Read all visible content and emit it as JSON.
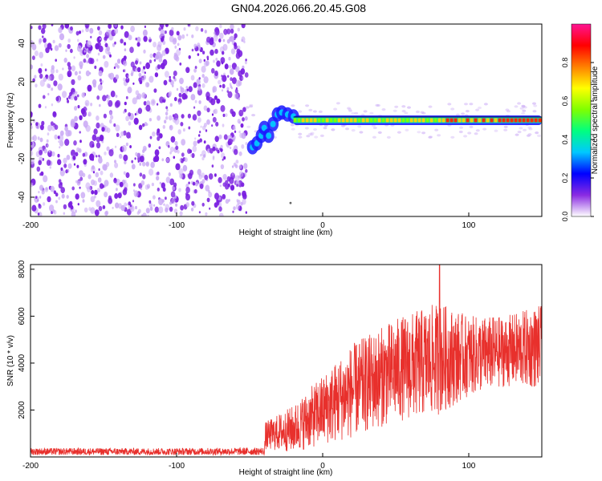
{
  "title": "GN04.2026.066.20.45.G08",
  "colors": {
    "snr_line": "#e8302c",
    "scatter_violet": "#7a1fe0",
    "scatter_light": "#c9a8f5",
    "track_line": "#000000"
  },
  "chart_data": [
    {
      "type": "heatmap",
      "name": "spectrogram",
      "xlabel": "Height of straight line (km)",
      "ylabel": "Frequency (Hz)",
      "xlim": [
        -200,
        150
      ],
      "ylim": [
        -50,
        50
      ],
      "xticks": [
        -200,
        -100,
        0,
        100
      ],
      "xtick_labels": [
        "-200",
        "-100",
        "0",
        "100"
      ],
      "yticks": [
        -40,
        -20,
        0,
        20,
        40
      ],
      "ytick_labels": [
        "-40",
        "-20",
        "0",
        "20",
        "40"
      ],
      "colorbar": {
        "label": "Normalized spectral amplitude",
        "range": [
          0,
          1
        ],
        "ticks": [
          0.0,
          0.2,
          0.4,
          0.6,
          0.8
        ],
        "tick_labels": [
          "0.0",
          "0.2",
          "0.4",
          "0.6",
          "0.8"
        ],
        "colormap": [
          "#ffffff",
          "#8a2be2",
          "#0000ff",
          "#00c8ff",
          "#00ff80",
          "#7fff00",
          "#ffff00",
          "#ff8000",
          "#ff0000",
          "#ff1493"
        ]
      },
      "noise_region_x": [
        -200,
        -52
      ],
      "transition": [
        {
          "x": -48,
          "f": -14
        },
        {
          "x": -45,
          "f": -12
        },
        {
          "x": -42,
          "f": -8
        },
        {
          "x": -40,
          "f": -4
        },
        {
          "x": -37,
          "f": -8
        },
        {
          "x": -34,
          "f": -2
        },
        {
          "x": -31,
          "f": 3
        },
        {
          "x": -28,
          "f": 4
        },
        {
          "x": -24,
          "f": 3
        },
        {
          "x": -20,
          "f": 2
        }
      ],
      "track_frequency": 0,
      "track_start_x": -20,
      "track_end_x": 150
    },
    {
      "type": "line",
      "name": "snr",
      "xlabel": "Height of straight line (km)",
      "ylabel": "SNR (10 * v/v)",
      "xlim": [
        -200,
        150
      ],
      "ylim": [
        0,
        8200
      ],
      "xticks": [
        -200,
        -100,
        0,
        100
      ],
      "xtick_labels": [
        "-200",
        "-100",
        "0",
        "100"
      ],
      "yticks": [
        2000,
        4000,
        6000,
        8000
      ],
      "ytick_labels": [
        "2000",
        "4000",
        "6000",
        "8000"
      ],
      "series": [
        {
          "envelope": [
            {
              "x": -200,
              "mean": 230,
              "spread": 150
            },
            {
              "x": -100,
              "mean": 230,
              "spread": 150
            },
            {
              "x": -40,
              "mean": 240,
              "spread": 160
            },
            {
              "x": -39,
              "mean": 900,
              "spread": 600
            },
            {
              "x": -20,
              "mean": 1200,
              "spread": 1000
            },
            {
              "x": 0,
              "mean": 2000,
              "spread": 1500
            },
            {
              "x": 20,
              "mean": 2800,
              "spread": 2000
            },
            {
              "x": 50,
              "mean": 3700,
              "spread": 2200
            },
            {
              "x": 80,
              "mean": 4200,
              "spread": 2400
            },
            {
              "x": 100,
              "mean": 4300,
              "spread": 1700
            },
            {
              "x": 125,
              "mean": 4500,
              "spread": 1500
            },
            {
              "x": 150,
              "mean": 4700,
              "spread": 1800
            }
          ],
          "peak": {
            "x": 80,
            "y": 8200
          }
        }
      ]
    }
  ]
}
